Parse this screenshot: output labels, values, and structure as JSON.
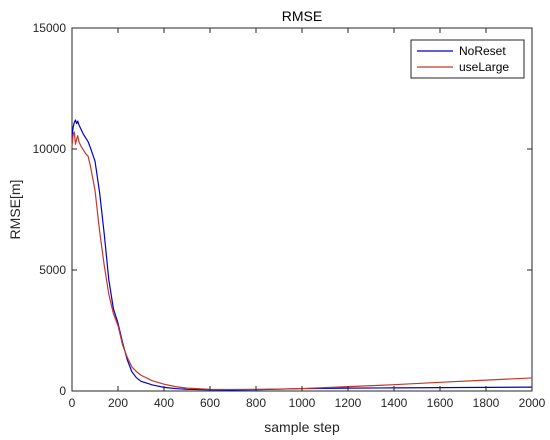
{
  "chart_data": {
    "type": "line",
    "title": "RMSE",
    "xlabel": "sample step",
    "ylabel": "RMSE[m]",
    "xlim": [
      0,
      2000
    ],
    "ylim": [
      0,
      15000
    ],
    "x_ticks": [
      0,
      200,
      400,
      600,
      800,
      1000,
      1200,
      1400,
      1600,
      1800,
      2000
    ],
    "y_ticks": [
      0,
      5000,
      10000,
      15000
    ],
    "grid": false,
    "legend_position": "top-right",
    "series": [
      {
        "name": "NoReset",
        "color": "#0000cc",
        "x": [
          0,
          5,
          10,
          15,
          20,
          25,
          30,
          40,
          50,
          60,
          70,
          80,
          100,
          120,
          140,
          160,
          180,
          200,
          220,
          240,
          260,
          280,
          300,
          350,
          400,
          450,
          500,
          600,
          700,
          800,
          900,
          1000,
          1100,
          1200,
          1400,
          1600,
          1800,
          2000
        ],
        "y": [
          10500,
          10900,
          11100,
          11200,
          11050,
          11150,
          11000,
          10800,
          10600,
          10450,
          10300,
          10050,
          9500,
          8200,
          6500,
          4600,
          3400,
          2800,
          2000,
          1300,
          800,
          550,
          400,
          250,
          150,
          100,
          70,
          50,
          45,
          55,
          75,
          100,
          110,
          120,
          130,
          140,
          150,
          160
        ]
      },
      {
        "name": "useLarge",
        "color": "#c0392b",
        "x": [
          0,
          5,
          10,
          15,
          20,
          25,
          30,
          40,
          50,
          60,
          70,
          80,
          100,
          120,
          140,
          160,
          180,
          200,
          220,
          240,
          260,
          280,
          300,
          350,
          400,
          450,
          500,
          600,
          700,
          800,
          900,
          1000,
          1100,
          1200,
          1400,
          1600,
          1800,
          2000
        ],
        "y": [
          10100,
          10600,
          10700,
          10200,
          10400,
          10550,
          10300,
          10100,
          9950,
          9800,
          9700,
          9300,
          8300,
          6600,
          5200,
          4000,
          3200,
          2700,
          1900,
          1400,
          1000,
          800,
          650,
          420,
          280,
          180,
          120,
          70,
          65,
          70,
          80,
          100,
          140,
          180,
          260,
          360,
          450,
          540
        ]
      }
    ]
  }
}
